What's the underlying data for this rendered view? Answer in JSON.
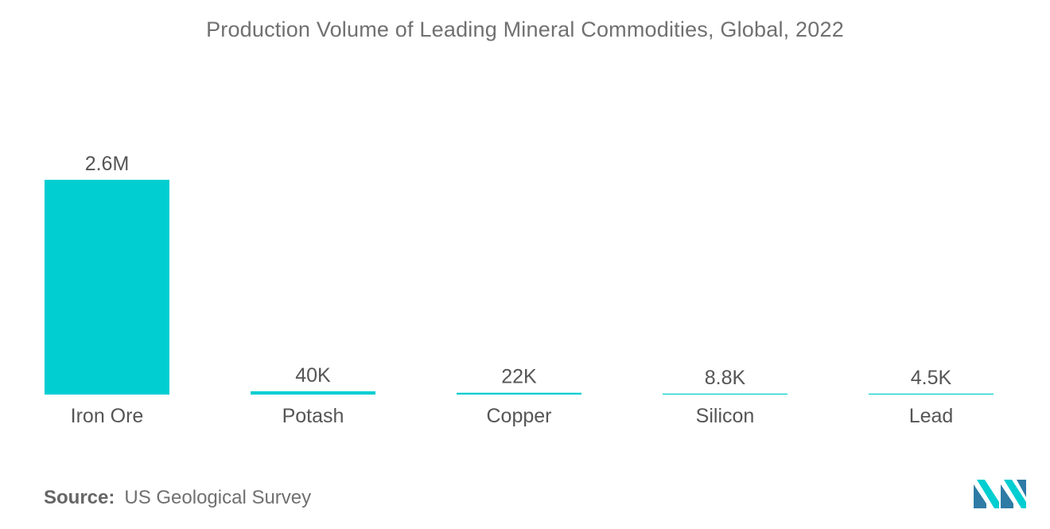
{
  "chart_data": {
    "type": "bar",
    "title": "Production Volume of Leading Mineral Commodities, Global, 2022",
    "categories": [
      "Iron Ore",
      "Potash",
      "Copper",
      "Silicon",
      "Lead"
    ],
    "values": [
      2600000,
      40000,
      22000,
      8800,
      4500
    ],
    "data_labels": [
      "2.6M",
      "40K",
      "22K",
      "8.8K",
      "4.5K"
    ],
    "xlabel": "",
    "ylabel": "",
    "ylim": [
      0,
      2600000
    ],
    "grid": false,
    "legend": "none",
    "bar_color": "#00CED1"
  },
  "source": {
    "label": "Source:",
    "text": "US Geological Survey"
  },
  "logo": {
    "icon": "mordor-intelligence-logo-icon",
    "colors": [
      "#2E7BA6",
      "#00CED1"
    ]
  }
}
